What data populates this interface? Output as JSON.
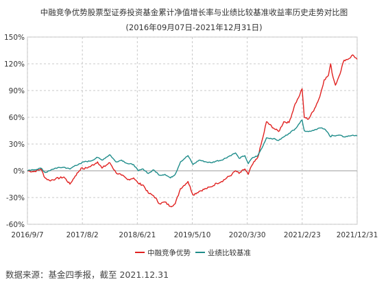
{
  "chart_data": {
    "type": "line",
    "title": "中融竞争优势股票型证券投资基金累计净值增长率与业绩比较基准收益率历史走势对比图",
    "subtitle": "(2016年09月07日-2021年12月31日)",
    "xlabel": "",
    "ylabel": "",
    "x_ticks": [
      "2016/9/7",
      "2017/8/2",
      "2018/6/21",
      "2019/5/10",
      "2020/3/30",
      "2021/2/23",
      "2021/12/31"
    ],
    "y_ticks": [
      "150%",
      "120%",
      "90%",
      "60%",
      "30%",
      "0%",
      "-30%",
      "-60%"
    ],
    "ylim": [
      -60,
      150
    ],
    "grid": true,
    "legend_position": "bottom",
    "series": [
      {
        "name": "中融竞争优势",
        "color": "#e0201f",
        "points": [
          [
            "2016-09-07",
            0
          ],
          [
            "2016-10-15",
            -1
          ],
          [
            "2016-11-25",
            2
          ],
          [
            "2016-12-20",
            -8
          ],
          [
            "2017-01-15",
            -11
          ],
          [
            "2017-02-20",
            -9
          ],
          [
            "2017-04-10",
            -7
          ],
          [
            "2017-05-15",
            -15
          ],
          [
            "2017-06-15",
            -6
          ],
          [
            "2017-07-20",
            3
          ],
          [
            "2017-08-02",
            2
          ],
          [
            "2017-09-15",
            5
          ],
          [
            "2017-10-25",
            10
          ],
          [
            "2017-11-20",
            3
          ],
          [
            "2018-01-05",
            9
          ],
          [
            "2018-02-10",
            -2
          ],
          [
            "2018-03-15",
            -5
          ],
          [
            "2018-04-20",
            -10
          ],
          [
            "2018-05-25",
            -8
          ],
          [
            "2018-06-21",
            -14
          ],
          [
            "2018-07-20",
            -16
          ],
          [
            "2018-08-20",
            -25
          ],
          [
            "2018-09-20",
            -28
          ],
          [
            "2018-10-25",
            -37
          ],
          [
            "2018-11-25",
            -35
          ],
          [
            "2018-12-28",
            -40
          ],
          [
            "2019-01-25",
            -37
          ],
          [
            "2019-02-25",
            -20
          ],
          [
            "2019-04-10",
            -12
          ],
          [
            "2019-05-10",
            -27
          ],
          [
            "2019-06-15",
            -23
          ],
          [
            "2019-07-25",
            -20
          ],
          [
            "2019-08-25",
            -18
          ],
          [
            "2019-09-25",
            -14
          ],
          [
            "2019-10-25",
            -12
          ],
          [
            "2019-12-25",
            -4
          ],
          [
            "2020-01-15",
            0
          ],
          [
            "2020-02-05",
            -3
          ],
          [
            "2020-03-10",
            2
          ],
          [
            "2020-03-30",
            -4
          ],
          [
            "2020-04-20",
            6
          ],
          [
            "2020-05-25",
            15
          ],
          [
            "2020-06-25",
            38
          ],
          [
            "2020-07-15",
            55
          ],
          [
            "2020-08-25",
            48
          ],
          [
            "2020-09-25",
            44
          ],
          [
            "2020-10-25",
            55
          ],
          [
            "2020-11-25",
            54
          ],
          [
            "2020-12-31",
            75
          ],
          [
            "2021-01-20",
            82
          ],
          [
            "2021-02-10",
            92
          ],
          [
            "2021-02-23",
            60
          ],
          [
            "2021-03-20",
            58
          ],
          [
            "2021-04-25",
            70
          ],
          [
            "2021-05-25",
            83
          ],
          [
            "2021-06-20",
            102
          ],
          [
            "2021-07-15",
            107
          ],
          [
            "2021-07-28",
            120
          ],
          [
            "2021-08-05",
            110
          ],
          [
            "2021-08-25",
            96
          ],
          [
            "2021-09-15",
            106
          ],
          [
            "2021-10-15",
            124
          ],
          [
            "2021-11-15",
            126
          ],
          [
            "2021-12-05",
            130
          ],
          [
            "2021-12-31",
            125
          ]
        ]
      },
      {
        "name": "业绩比较基准",
        "color": "#1e8c8a",
        "points": [
          [
            "2016-09-07",
            0
          ],
          [
            "2016-10-15",
            1
          ],
          [
            "2016-11-25",
            3
          ],
          [
            "2016-12-20",
            -2
          ],
          [
            "2017-01-15",
            0
          ],
          [
            "2017-02-20",
            3
          ],
          [
            "2017-04-10",
            4
          ],
          [
            "2017-05-15",
            2
          ],
          [
            "2017-06-15",
            6
          ],
          [
            "2017-07-20",
            8
          ],
          [
            "2017-08-02",
            10
          ],
          [
            "2017-09-15",
            11
          ],
          [
            "2017-10-25",
            15
          ],
          [
            "2017-11-20",
            12
          ],
          [
            "2018-01-05",
            18
          ],
          [
            "2018-02-10",
            10
          ],
          [
            "2018-03-15",
            12
          ],
          [
            "2018-04-20",
            8
          ],
          [
            "2018-05-25",
            7
          ],
          [
            "2018-06-21",
            0
          ],
          [
            "2018-07-20",
            2
          ],
          [
            "2018-08-20",
            -3
          ],
          [
            "2018-09-20",
            1
          ],
          [
            "2018-10-25",
            -5
          ],
          [
            "2018-11-25",
            -4
          ],
          [
            "2018-12-28",
            -8
          ],
          [
            "2019-01-25",
            -4
          ],
          [
            "2019-02-25",
            10
          ],
          [
            "2019-04-10",
            17
          ],
          [
            "2019-05-10",
            7
          ],
          [
            "2019-06-15",
            12
          ],
          [
            "2019-07-25",
            10
          ],
          [
            "2019-08-25",
            9
          ],
          [
            "2019-09-25",
            11
          ],
          [
            "2019-10-25",
            12
          ],
          [
            "2019-12-25",
            18
          ],
          [
            "2020-01-15",
            20
          ],
          [
            "2020-02-05",
            14
          ],
          [
            "2020-03-10",
            17
          ],
          [
            "2020-03-30",
            8
          ],
          [
            "2020-04-20",
            14
          ],
          [
            "2020-05-25",
            17
          ],
          [
            "2020-06-25",
            28
          ],
          [
            "2020-07-15",
            37
          ],
          [
            "2020-08-25",
            36
          ],
          [
            "2020-09-25",
            34
          ],
          [
            "2020-10-25",
            38
          ],
          [
            "2020-11-25",
            42
          ],
          [
            "2020-12-31",
            47
          ],
          [
            "2021-01-20",
            52
          ],
          [
            "2021-02-10",
            57
          ],
          [
            "2021-02-23",
            45
          ],
          [
            "2021-03-20",
            44
          ],
          [
            "2021-04-25",
            46
          ],
          [
            "2021-05-25",
            48
          ],
          [
            "2021-06-20",
            47
          ],
          [
            "2021-07-15",
            42
          ],
          [
            "2021-07-28",
            38
          ],
          [
            "2021-08-05",
            40
          ],
          [
            "2021-08-25",
            39
          ],
          [
            "2021-09-15",
            40
          ],
          [
            "2021-10-15",
            38
          ],
          [
            "2021-11-15",
            39
          ],
          [
            "2021-12-05",
            40
          ],
          [
            "2021-12-31",
            39
          ]
        ]
      }
    ]
  },
  "source_note": "数据来源：基金四季报，截至 2021.12.31"
}
